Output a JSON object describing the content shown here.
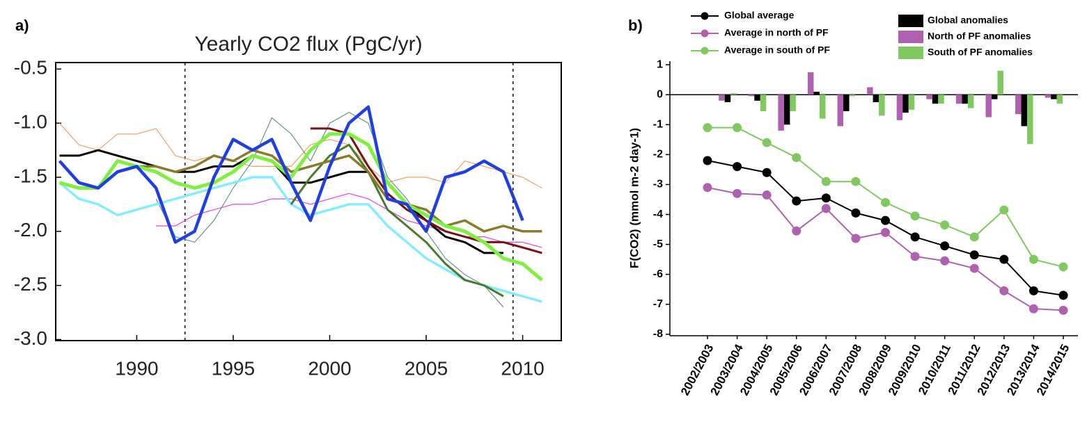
{
  "chart_data": [
    {
      "type": "line",
      "panel_label": "a)",
      "title": "Yearly CO2 flux (PgC/yr)",
      "x": [
        1986,
        1987,
        1988,
        1989,
        1990,
        1991,
        1992,
        1993,
        1994,
        1995,
        1996,
        1997,
        1998,
        1999,
        2000,
        2001,
        2002,
        2003,
        2004,
        2005,
        2006,
        2007,
        2008,
        2009,
        2010,
        2011
      ],
      "xlim": [
        1985.8,
        2012
      ],
      "xticks": [
        1990,
        1995,
        2000,
        2005,
        2010
      ],
      "ylim": [
        -3.01,
        -0.44
      ],
      "yticks": [
        -0.5,
        {
          "value": -1,
          "label": "-1.0"
        },
        -1.5,
        {
          "value": -2,
          "label": "-2.0"
        },
        -2.5,
        {
          "value": -3,
          "label": "-3.0"
        }
      ],
      "vlines": [
        1992.5,
        2009.5
      ],
      "series": [
        {
          "color": "#f0a060",
          "line_width": 1.2,
          "values": [
            -1.0,
            -1.2,
            -1.25,
            -1.1,
            -1.1,
            -1.05,
            -1.3,
            -1.35,
            -1.3,
            -1.35,
            -1.4,
            -1.4,
            -1.4,
            -1.2,
            -1.15,
            -1.2,
            -1.4,
            -1.55,
            -1.5,
            -1.5,
            -1.55,
            -1.35,
            -1.4,
            -1.45,
            -1.5,
            -1.6
          ]
        },
        {
          "color": "#e040e0",
          "line_width": 1.2,
          "values": [
            null,
            null,
            null,
            null,
            null,
            -1.95,
            -1.95,
            -1.85,
            -1.8,
            -1.75,
            -1.75,
            -1.7,
            -1.7,
            -1.75,
            -1.7,
            -1.65,
            -1.7,
            -1.8,
            -1.9,
            -1.95,
            -2.0,
            -2.05,
            -2.05,
            -2.1,
            -2.1,
            -2.15
          ]
        },
        {
          "color": "#6a9090",
          "line_width": 1.2,
          "values": [
            null,
            null,
            null,
            null,
            null,
            -1.7,
            -2.05,
            -2.1,
            -1.9,
            -1.6,
            -1.35,
            -0.95,
            -1.1,
            -1.35,
            -1.0,
            -0.9,
            -1.0,
            -1.5,
            -1.7,
            -2.0,
            -2.25,
            -2.4,
            -2.5,
            -2.7,
            null,
            null
          ]
        },
        {
          "color": "#80eeff",
          "line_width": 3.5,
          "values": [
            -1.55,
            -1.7,
            -1.75,
            -1.85,
            -1.8,
            -1.75,
            -1.7,
            -1.65,
            -1.6,
            -1.55,
            -1.5,
            -1.5,
            -1.75,
            -1.85,
            -1.8,
            -1.75,
            -1.75,
            -1.95,
            -2.1,
            -2.25,
            -2.35,
            -2.45,
            -2.5,
            -2.55,
            -2.6,
            -2.65
          ]
        },
        {
          "color": "#000000",
          "line_width": 3,
          "values": [
            -1.3,
            -1.3,
            -1.25,
            -1.3,
            -1.35,
            -1.4,
            -1.45,
            -1.45,
            -1.4,
            -1.4,
            -1.3,
            -1.35,
            -1.55,
            -1.55,
            -1.5,
            -1.45,
            -1.45,
            -1.7,
            -1.75,
            -1.9,
            -2.05,
            -2.1,
            -2.2,
            -2.2,
            null,
            null
          ]
        },
        {
          "color": "#7a1010",
          "line_width": 3,
          "values": [
            null,
            null,
            null,
            null,
            null,
            null,
            null,
            null,
            null,
            null,
            null,
            null,
            null,
            -1.05,
            -1.05,
            -1.1,
            -1.4,
            -1.65,
            -1.8,
            -1.9,
            -2.0,
            -2.05,
            -2.1,
            -2.1,
            -2.15,
            -2.2
          ]
        },
        {
          "color": "#4a7a2a",
          "line_width": 3,
          "values": [
            null,
            null,
            null,
            null,
            null,
            null,
            null,
            null,
            null,
            null,
            null,
            null,
            -1.75,
            -1.5,
            -1.3,
            -1.2,
            -1.45,
            -1.8,
            -1.95,
            -2.1,
            -2.3,
            -2.45,
            -2.5,
            -2.6,
            null,
            null
          ]
        },
        {
          "color": "#8a7a2a",
          "line_width": 3.5,
          "values": [
            null,
            null,
            null,
            null,
            -1.4,
            -1.4,
            -1.45,
            -1.4,
            -1.3,
            -1.35,
            -1.25,
            -1.3,
            -1.45,
            -1.4,
            -1.35,
            -1.3,
            -1.45,
            -1.7,
            -1.75,
            -1.8,
            -1.95,
            -1.9,
            -2.0,
            -1.95,
            -2.0,
            -2.0
          ]
        },
        {
          "color": "#80f040",
          "line_width": 5,
          "values": [
            -1.55,
            -1.6,
            -1.6,
            -1.35,
            -1.4,
            -1.45,
            -1.55,
            -1.6,
            -1.55,
            -1.45,
            -1.3,
            -1.35,
            -1.5,
            -1.25,
            -1.1,
            -1.1,
            -1.2,
            -1.55,
            -1.75,
            -1.85,
            -1.95,
            -2.0,
            -2.1,
            -2.25,
            -2.3,
            -2.45
          ]
        },
        {
          "color": "#1f3fe0",
          "line_width": 4.5,
          "values": [
            -1.35,
            -1.55,
            -1.6,
            -1.45,
            -1.4,
            -1.6,
            -2.1,
            -2.0,
            -1.5,
            -1.15,
            -1.25,
            -1.15,
            -1.55,
            -1.9,
            -1.4,
            -1.0,
            -0.85,
            -1.7,
            -1.75,
            -2.0,
            -1.5,
            -1.45,
            -1.35,
            -1.45,
            -1.9,
            null
          ]
        }
      ]
    },
    {
      "type": "combo",
      "panel_label": "b)",
      "ylabel": "F(CO2) (mmol m-2 day-1)",
      "categories": [
        "2002/2003",
        "2003/2004",
        "2004/2005",
        "2005/2006",
        "2006/2007",
        "2007/2008",
        "2008/2009",
        "2009/2010",
        "2010/2011",
        "2011/2012",
        "2012/2013",
        "2013/2014",
        "2014/2015"
      ],
      "ylim": [
        -8.05,
        1.12
      ],
      "yticks": [
        1,
        0,
        -1,
        -2,
        -3,
        -4,
        -5,
        -6,
        -7,
        -8
      ],
      "series": [
        {
          "name": "Global average",
          "mark": "line",
          "color": "#000000",
          "values": [
            -2.2,
            -2.4,
            -2.6,
            -3.55,
            -3.45,
            -3.95,
            -4.2,
            -4.75,
            -5.05,
            -5.35,
            -5.5,
            -6.55,
            -6.7
          ]
        },
        {
          "name": "Average in north of PF",
          "mark": "line",
          "color": "#b060b0",
          "values": [
            -3.1,
            -3.3,
            -3.35,
            -4.55,
            -3.8,
            -4.8,
            -4.6,
            -5.4,
            -5.55,
            -5.8,
            -6.55,
            -7.15,
            -7.2
          ]
        },
        {
          "name": "Average in south of PF",
          "mark": "line",
          "color": "#80c860",
          "values": [
            -1.1,
            -1.1,
            -1.6,
            -2.1,
            -2.9,
            -2.9,
            -3.6,
            -4.05,
            -4.35,
            -4.75,
            -3.85,
            -5.5,
            -5.75
          ]
        },
        {
          "name": "Global anomalies",
          "mark": "bar",
          "color": "#000000",
          "values": [
            -0.25,
            -0.2,
            -1.0,
            0.1,
            -0.55,
            -0.25,
            -0.6,
            -0.3,
            -0.3,
            -0.15,
            -1.05,
            -0.15,
            null
          ]
        },
        {
          "name": "North of PF anomalies",
          "mark": "bar",
          "color": "#b060b0",
          "values": [
            -0.2,
            -0.05,
            -1.2,
            0.75,
            -1.05,
            0.25,
            -0.85,
            -0.15,
            -0.3,
            -0.75,
            -0.65,
            -0.1,
            null
          ]
        },
        {
          "name": "South of PF anomalies",
          "mark": "bar",
          "color": "#80c860",
          "values": [
            0.05,
            -0.55,
            -0.55,
            -0.8,
            -0.05,
            -0.7,
            -0.5,
            -0.3,
            -0.45,
            0.8,
            -1.65,
            -0.3,
            null
          ]
        }
      ]
    }
  ]
}
